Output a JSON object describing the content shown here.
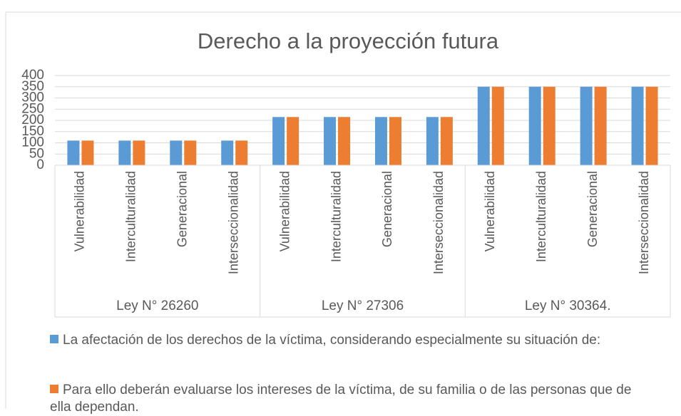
{
  "chart_data": {
    "type": "bar",
    "title": "Derecho a la proyección futura",
    "groups": [
      {
        "name": "Ley N° 26260",
        "categories": [
          "Vulnerabilidad",
          "Interculturalidad",
          "Generacional",
          "Interseccionalidad"
        ]
      },
      {
        "name": "Ley N° 27306",
        "categories": [
          "Vulnerabilidad",
          "Interculturalidad",
          "Generacional",
          "Interseccionalidad"
        ]
      },
      {
        "name": "Ley N° 30364.",
        "categories": [
          "Vulnerabilidad",
          "Interculturalidad",
          "Generacional",
          "Interseccionalidad"
        ]
      }
    ],
    "series": [
      {
        "name": "La afectación de los derechos de la víctima, considerando especialmente su situación de:",
        "color": "#5b9bd5",
        "values": [
          110,
          110,
          110,
          110,
          215,
          215,
          215,
          215,
          350,
          350,
          350,
          350
        ]
      },
      {
        "name": "Para ello deberán evaluarse los intereses de la víctima, de su familia o de las personas que de ella dependan.",
        "color": "#ed7d31",
        "values": [
          110,
          110,
          110,
          110,
          215,
          215,
          215,
          215,
          350,
          350,
          350,
          350
        ]
      }
    ],
    "ylim": [
      0,
      400
    ],
    "yticks": [
      0,
      50,
      100,
      150,
      200,
      250,
      300,
      350,
      400
    ],
    "grid": true
  }
}
